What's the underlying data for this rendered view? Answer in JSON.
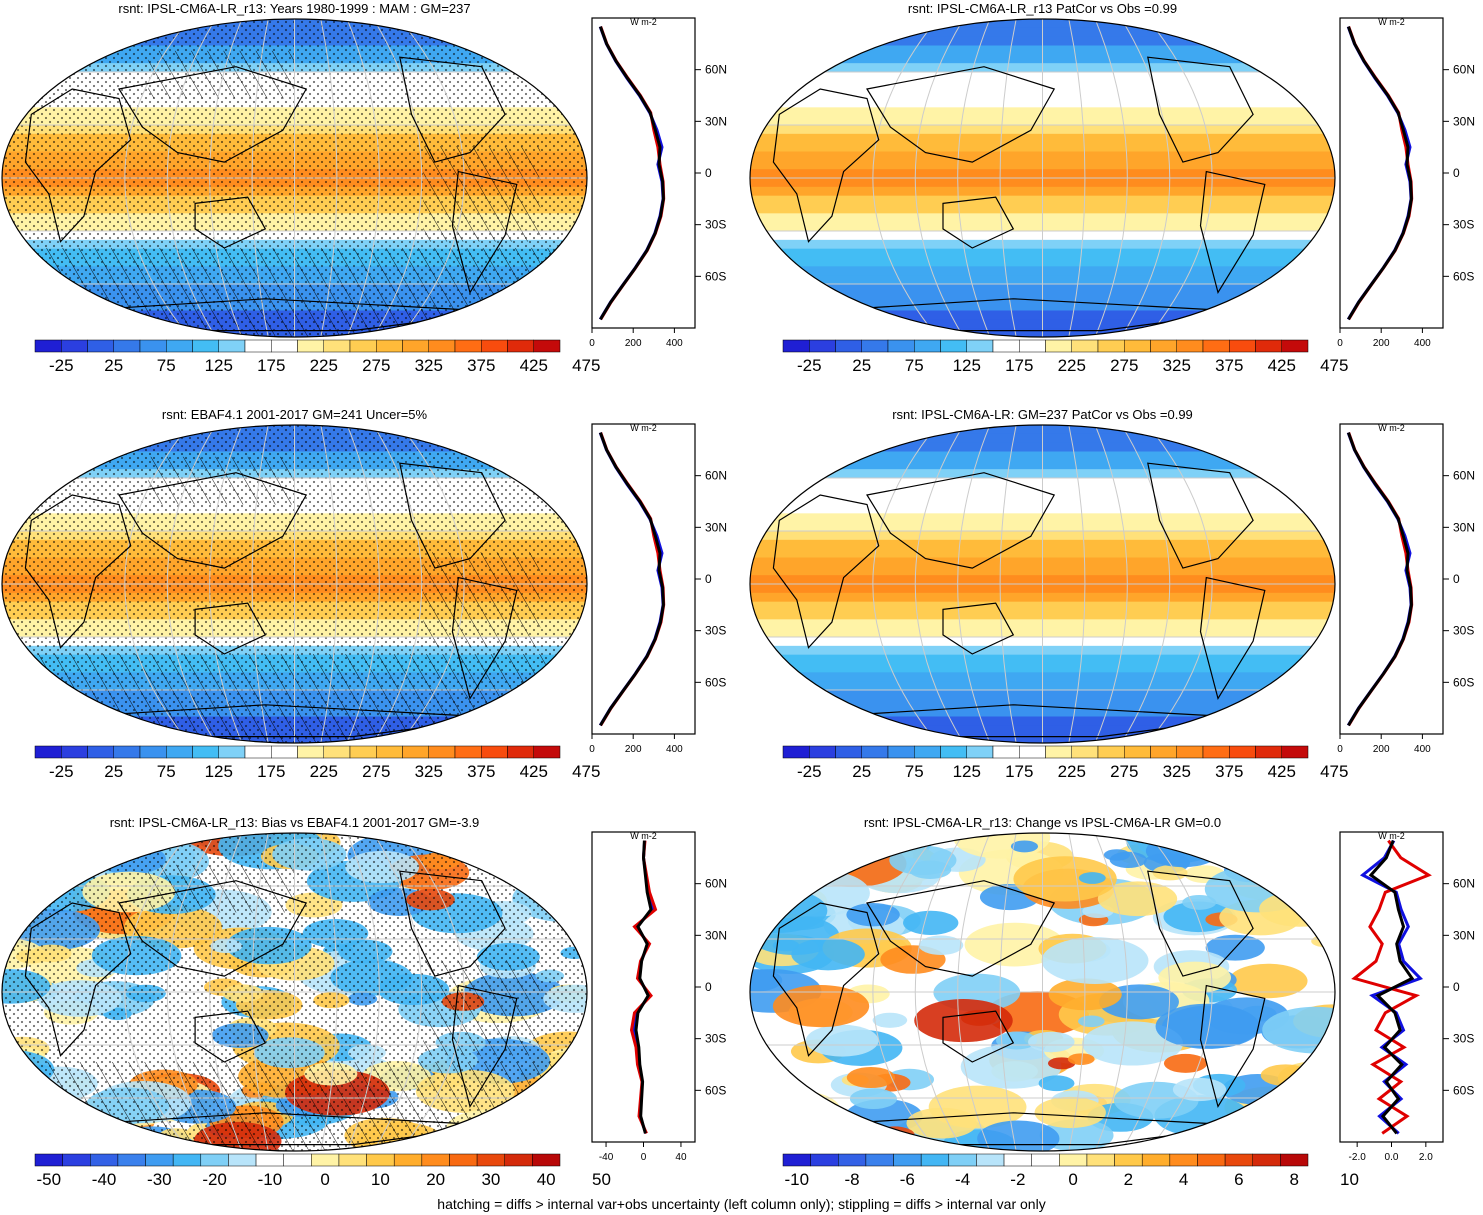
{
  "footer": "hatching = diffs > internal var+obs uncertainty (left column only); stippling = diffs > internal var only",
  "colors": {
    "abs_palette": [
      "#1f1fd4",
      "#2b3fe0",
      "#2f5fe6",
      "#3579ea",
      "#3a92ef",
      "#3fa8f2",
      "#43bdf4",
      "#7fd1f7",
      "#ffffff",
      "#ffffff",
      "#fff3a6",
      "#ffe17a",
      "#ffcd52",
      "#ffbb3a",
      "#ffa52a",
      "#ff8c1e",
      "#ff6d14",
      "#f84c0e",
      "#e02a0a",
      "#c40a0a"
    ],
    "diff_palette": [
      "#1f1fd4",
      "#2b3fe0",
      "#3361e6",
      "#3a80ec",
      "#3f9cf1",
      "#43b6f4",
      "#7fcff6",
      "#b8e4fa",
      "#ffffff",
      "#ffffff",
      "#fff3a6",
      "#ffe17a",
      "#ffc94a",
      "#ffad2c",
      "#ff8c1e",
      "#f86a12",
      "#e8480c",
      "#d42a0a",
      "#b80808"
    ],
    "obs_line": "#e00000",
    "model_line": "#1010e0",
    "hist_line": "#000000"
  },
  "panels": [
    {
      "title": "rsnt: IPSL-CM6A-LR_r13: Years 1980-1999 : MAM : GM=237",
      "colorbar": {
        "labels": [
          "-25",
          "25",
          "75",
          "125",
          "175",
          "225",
          "275",
          "325",
          "375",
          "425",
          "475"
        ],
        "palette": "abs"
      },
      "profile": {
        "xticks": [
          "0",
          "200",
          "400"
        ],
        "unit": "W m-2"
      }
    },
    {
      "title": "rsnt: IPSL-CM6A-LR_r13 PatCor vs Obs =0.99",
      "colorbar": {
        "labels": [
          "-25",
          "25",
          "75",
          "125",
          "175",
          "225",
          "275",
          "325",
          "375",
          "425",
          "475"
        ],
        "palette": "abs"
      },
      "profile": {
        "xticks": [
          "0",
          "200",
          "400"
        ],
        "unit": "W m-2"
      }
    },
    {
      "title": "rsnt: EBAF4.1 2001-2017 GM=241 Uncer=5%",
      "colorbar": {
        "labels": [
          "-25",
          "25",
          "75",
          "125",
          "175",
          "225",
          "275",
          "325",
          "375",
          "425",
          "475"
        ],
        "palette": "abs"
      },
      "profile": {
        "xticks": [
          "0",
          "200",
          "400"
        ],
        "unit": "W m-2"
      }
    },
    {
      "title": "rsnt: IPSL-CM6A-LR: GM=237 PatCor vs Obs =0.99",
      "colorbar": {
        "labels": [
          "-25",
          "25",
          "75",
          "125",
          "175",
          "225",
          "275",
          "325",
          "375",
          "425",
          "475"
        ],
        "palette": "abs"
      },
      "profile": {
        "xticks": [
          "0",
          "200",
          "400"
        ],
        "unit": "W m-2"
      }
    },
    {
      "title": "rsnt: IPSL-CM6A-LR_r13: Bias vs EBAF4.1 2001-2017 GM=-3.9",
      "colorbar": {
        "labels": [
          "-50",
          "-40",
          "-30",
          "-20",
          "-10",
          "0",
          "10",
          "20",
          "30",
          "40",
          "50"
        ],
        "palette": "diff"
      },
      "profile": {
        "xticks": [
          "-40",
          "0",
          "40"
        ],
        "unit": "W m-2"
      }
    },
    {
      "title": "rsnt: IPSL-CM6A-LR_r13: Change vs IPSL-CM6A-LR GM=0.0",
      "colorbar": {
        "labels": [
          "-10",
          "-8",
          "-6",
          "-4",
          "-2",
          "0",
          "2",
          "4",
          "6",
          "8",
          "10"
        ],
        "palette": "diff"
      },
      "profile": {
        "xticks": [
          "-2.0",
          "0.0",
          "2.0"
        ],
        "unit": "W m-2"
      }
    }
  ],
  "chart_data": {
    "type": "heatmap",
    "lat_ticks": [
      "60N",
      "30N",
      "0",
      "30S",
      "60S"
    ],
    "zonal_mean_profiles": {
      "lat": [
        -85,
        -75,
        -65,
        -55,
        -45,
        -35,
        -25,
        -15,
        -5,
        5,
        15,
        25,
        35,
        45,
        55,
        65,
        75,
        85
      ],
      "absolute_model": [
        40,
        90,
        150,
        210,
        265,
        305,
        330,
        345,
        340,
        320,
        340,
        315,
        280,
        230,
        170,
        115,
        70,
        40
      ],
      "absolute_obs": [
        42,
        92,
        152,
        212,
        268,
        308,
        335,
        348,
        345,
        330,
        320,
        300,
        285,
        235,
        175,
        118,
        72,
        42
      ],
      "bias": [
        2,
        -3,
        -2,
        -1,
        -4,
        -5,
        -8,
        -6,
        5,
        -4,
        -2,
        4,
        -6,
        8,
        4,
        2,
        0,
        1
      ],
      "change": [
        0.3,
        -0.5,
        0.4,
        -0.3,
        0.6,
        -0.4,
        0.5,
        0.2,
        -0.8,
        1.2,
        0.5,
        0.3,
        0.7,
        0.4,
        0.2,
        -1.2,
        -0.3,
        0.1
      ]
    }
  }
}
